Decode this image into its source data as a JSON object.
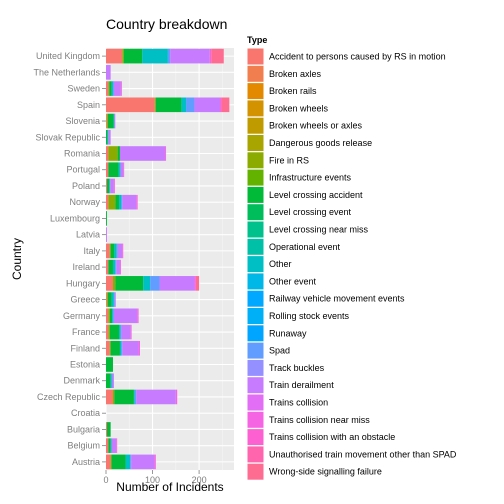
{
  "chart_data": {
    "type": "bar",
    "orientation": "horizontal",
    "stacked": true,
    "title": "Country breakdown",
    "xlabel": "Number of Incidents",
    "ylabel": "Country",
    "xlim": [
      0,
      275
    ],
    "xticks": [
      0,
      100,
      200
    ],
    "grid": true,
    "legend_title": "Type",
    "legend_position": "right",
    "categories": [
      "United Kingdom",
      "The Netherlands",
      "Sweden",
      "Spain",
      "Slovenia",
      "Slovak Republic",
      "Romania",
      "Portugal",
      "Poland",
      "Norway",
      "Luxembourg",
      "Latvia",
      "Italy",
      "Ireland",
      "Hungary",
      "Greece",
      "Germany",
      "France",
      "Finland",
      "Estonia",
      "Denmark",
      "Czech Republic",
      "Croatia",
      "Bulgaria",
      "Belgium",
      "Austria"
    ],
    "series": [
      {
        "name": "Accident to persons caused by RS in motion",
        "color": "#F8766D",
        "values": [
          35,
          0,
          5,
          105,
          2,
          0,
          5,
          5,
          2,
          5,
          0,
          0,
          8,
          5,
          15,
          2,
          5,
          5,
          8,
          0,
          0,
          15,
          0,
          2,
          5,
          10
        ]
      },
      {
        "name": "Broken axles",
        "color": "#F07E4E",
        "values": [
          0,
          0,
          0,
          0,
          0,
          0,
          0,
          0,
          0,
          0,
          0,
          0,
          0,
          0,
          0,
          0,
          0,
          0,
          0,
          0,
          0,
          0,
          0,
          0,
          0,
          0
        ]
      },
      {
        "name": "Broken rails",
        "color": "#E38900",
        "values": [
          0,
          0,
          0,
          0,
          0,
          0,
          0,
          0,
          0,
          0,
          0,
          0,
          0,
          0,
          0,
          0,
          0,
          0,
          0,
          0,
          0,
          0,
          0,
          0,
          0,
          0
        ]
      },
      {
        "name": "Broken wheels",
        "color": "#D39200",
        "values": [
          0,
          0,
          0,
          0,
          0,
          0,
          0,
          0,
          0,
          0,
          0,
          0,
          0,
          0,
          0,
          0,
          0,
          0,
          0,
          0,
          0,
          0,
          0,
          0,
          0,
          0
        ]
      },
      {
        "name": "Broken wheels or axles",
        "color": "#C09B00",
        "values": [
          0,
          0,
          0,
          0,
          0,
          0,
          0,
          0,
          0,
          0,
          0,
          0,
          0,
          0,
          0,
          0,
          0,
          0,
          0,
          0,
          0,
          0,
          0,
          0,
          0,
          0
        ]
      },
      {
        "name": "Dangerous goods release",
        "color": "#A8A400",
        "values": [
          0,
          0,
          0,
          0,
          0,
          0,
          0,
          0,
          0,
          0,
          0,
          0,
          0,
          0,
          0,
          0,
          0,
          0,
          0,
          0,
          0,
          0,
          0,
          0,
          0,
          0
        ]
      },
      {
        "name": "Fire in RS",
        "color": "#8CAB00",
        "values": [
          3,
          0,
          2,
          2,
          2,
          0,
          20,
          0,
          0,
          15,
          0,
          0,
          2,
          0,
          5,
          2,
          3,
          3,
          2,
          0,
          0,
          3,
          0,
          0,
          0,
          2
        ]
      },
      {
        "name": "Infrastructure events",
        "color": "#64B200",
        "values": [
          0,
          0,
          0,
          0,
          0,
          0,
          0,
          0,
          0,
          0,
          0,
          0,
          0,
          0,
          0,
          0,
          0,
          0,
          0,
          0,
          0,
          0,
          0,
          0,
          0,
          0
        ]
      },
      {
        "name": "Level crossing accident",
        "color": "#00BA38",
        "values": [
          40,
          0,
          5,
          55,
          12,
          3,
          5,
          22,
          5,
          8,
          2,
          0,
          8,
          10,
          60,
          8,
          5,
          20,
          20,
          15,
          10,
          42,
          0,
          8,
          5,
          30
        ]
      },
      {
        "name": "Level crossing event",
        "color": "#00BD5C",
        "values": [
          0,
          0,
          0,
          0,
          0,
          0,
          0,
          0,
          0,
          0,
          0,
          0,
          0,
          0,
          0,
          0,
          0,
          0,
          0,
          0,
          0,
          0,
          0,
          0,
          0,
          0
        ]
      },
      {
        "name": "Level crossing near miss",
        "color": "#00C08B",
        "values": [
          0,
          0,
          0,
          0,
          0,
          0,
          0,
          0,
          0,
          0,
          0,
          0,
          0,
          0,
          0,
          0,
          0,
          0,
          0,
          0,
          0,
          0,
          0,
          0,
          0,
          0
        ]
      },
      {
        "name": "Operational event",
        "color": "#00C1A7",
        "values": [
          0,
          0,
          0,
          0,
          0,
          0,
          0,
          0,
          0,
          0,
          0,
          0,
          0,
          0,
          0,
          0,
          0,
          0,
          0,
          0,
          0,
          0,
          0,
          0,
          0,
          0
        ]
      },
      {
        "name": "Other",
        "color": "#00BFC4",
        "values": [
          55,
          0,
          3,
          10,
          2,
          2,
          0,
          3,
          2,
          5,
          0,
          0,
          5,
          5,
          15,
          5,
          2,
          3,
          3,
          0,
          2,
          2,
          0,
          0,
          2,
          10
        ]
      },
      {
        "name": "Other event",
        "color": "#00B8E7",
        "values": [
          0,
          0,
          0,
          0,
          0,
          0,
          0,
          0,
          0,
          0,
          0,
          0,
          0,
          0,
          0,
          0,
          0,
          0,
          0,
          0,
          0,
          0,
          0,
          0,
          0,
          0
        ]
      },
      {
        "name": "Railway vehicle movement events",
        "color": "#00A9FF",
        "values": [
          0,
          0,
          0,
          0,
          0,
          0,
          0,
          0,
          0,
          0,
          0,
          0,
          0,
          0,
          0,
          0,
          0,
          0,
          0,
          0,
          0,
          0,
          0,
          0,
          0,
          0
        ]
      },
      {
        "name": "Rolling stock events",
        "color": "#00B0F6",
        "values": [
          0,
          0,
          0,
          0,
          0,
          0,
          0,
          0,
          0,
          0,
          0,
          0,
          0,
          0,
          0,
          0,
          0,
          0,
          0,
          0,
          0,
          0,
          0,
          0,
          0,
          0
        ]
      },
      {
        "name": "Runaway",
        "color": "#00A5FF",
        "values": [
          0,
          0,
          0,
          0,
          0,
          0,
          0,
          0,
          0,
          0,
          0,
          0,
          0,
          0,
          0,
          0,
          0,
          0,
          0,
          0,
          0,
          0,
          0,
          0,
          0,
          0
        ]
      },
      {
        "name": "Spad",
        "color": "#619CFF",
        "values": [
          5,
          0,
          2,
          18,
          0,
          0,
          0,
          2,
          0,
          2,
          0,
          0,
          2,
          2,
          20,
          2,
          2,
          2,
          2,
          0,
          2,
          3,
          0,
          0,
          0,
          2
        ]
      },
      {
        "name": "Track buckles",
        "color": "#9590FF",
        "values": [
          0,
          0,
          0,
          0,
          0,
          0,
          0,
          0,
          0,
          0,
          0,
          0,
          0,
          0,
          0,
          0,
          0,
          0,
          0,
          0,
          0,
          0,
          0,
          0,
          0,
          0
        ]
      },
      {
        "name": "Train derailment",
        "color": "#C77CFF",
        "values": [
          85,
          10,
          15,
          55,
          2,
          5,
          97,
          5,
          8,
          30,
          0,
          2,
          10,
          8,
          75,
          2,
          50,
          20,
          35,
          0,
          3,
          85,
          0,
          0,
          10,
          50
        ]
      },
      {
        "name": "Trains collision",
        "color": "#E36EF6",
        "values": [
          0,
          0,
          0,
          0,
          0,
          0,
          0,
          0,
          0,
          0,
          0,
          0,
          0,
          0,
          0,
          0,
          0,
          0,
          0,
          0,
          0,
          0,
          0,
          0,
          0,
          0
        ]
      },
      {
        "name": "Trains collision near miss",
        "color": "#F564E3",
        "values": [
          3,
          0,
          2,
          3,
          0,
          0,
          2,
          2,
          2,
          3,
          0,
          0,
          2,
          2,
          3,
          0,
          3,
          2,
          3,
          0,
          0,
          3,
          0,
          0,
          2,
          3
        ]
      },
      {
        "name": "Trains collision with an obstacle",
        "color": "#FD61D1",
        "values": [
          0,
          0,
          0,
          0,
          0,
          0,
          0,
          0,
          0,
          0,
          0,
          0,
          0,
          0,
          0,
          0,
          0,
          0,
          0,
          0,
          0,
          0,
          0,
          0,
          0,
          0
        ]
      },
      {
        "name": "Unauthorised train movement other than SPAD",
        "color": "#FF65AC",
        "values": [
          0,
          0,
          0,
          0,
          0,
          0,
          0,
          0,
          0,
          0,
          0,
          0,
          0,
          0,
          0,
          0,
          0,
          0,
          0,
          0,
          0,
          0,
          0,
          0,
          0,
          0
        ]
      },
      {
        "name": "Wrong-side signalling failure",
        "color": "#FF6C91",
        "values": [
          27,
          0,
          0,
          17,
          0,
          0,
          0,
          0,
          0,
          0,
          0,
          0,
          0,
          0,
          7,
          0,
          0,
          0,
          0,
          0,
          0,
          0,
          0,
          0,
          0,
          0
        ]
      }
    ]
  }
}
